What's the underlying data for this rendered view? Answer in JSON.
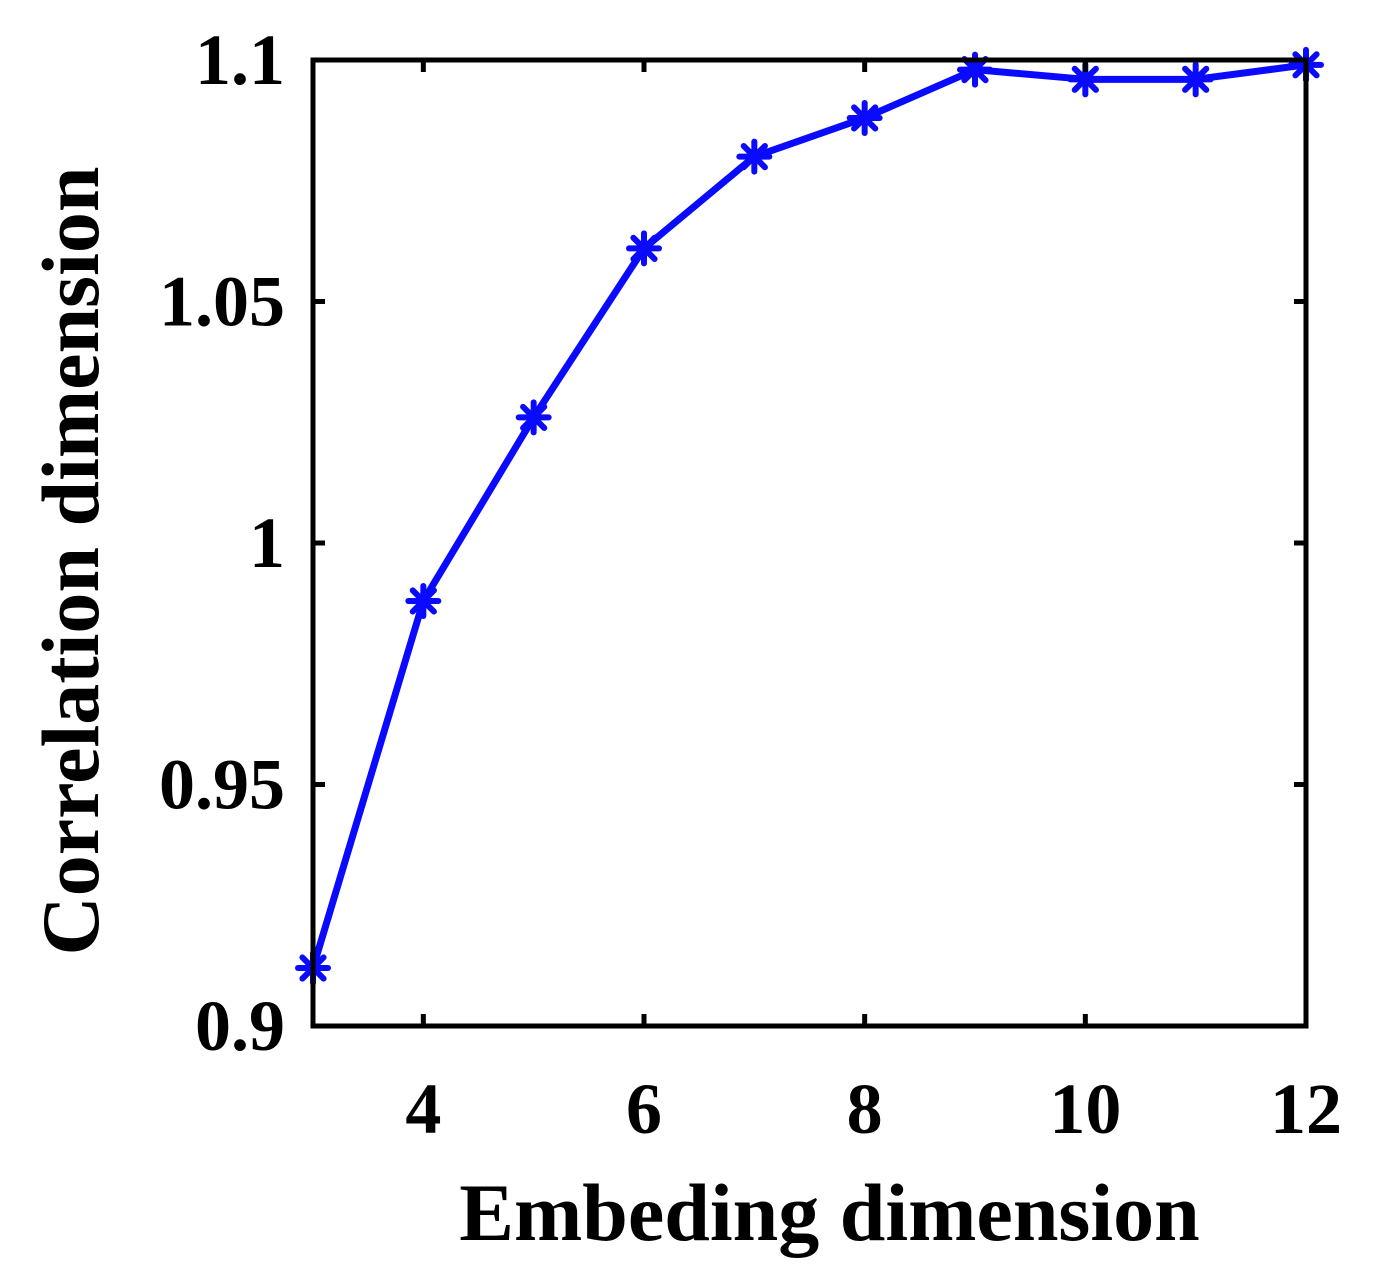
{
  "chart_data": {
    "type": "line",
    "title": "",
    "xlabel": "Embeding dimension",
    "ylabel": "Correlation dimension",
    "xlim": [
      3,
      12
    ],
    "ylim": [
      0.9,
      1.1
    ],
    "xticks": [
      "4",
      "6",
      "8",
      "10",
      "12"
    ],
    "yticks": [
      "0.9",
      "0.95",
      "1",
      "1.05",
      "1.1"
    ],
    "grid": false,
    "series": [
      {
        "color": "#0a0aff",
        "marker": "asterisk",
        "x": [
          3,
          4,
          5,
          6,
          7,
          8,
          9,
          10,
          11,
          12
        ],
        "y": [
          0.912,
          0.988,
          1.026,
          1.061,
          1.08,
          1.088,
          1.098,
          1.096,
          1.096,
          1.099
        ]
      }
    ]
  }
}
